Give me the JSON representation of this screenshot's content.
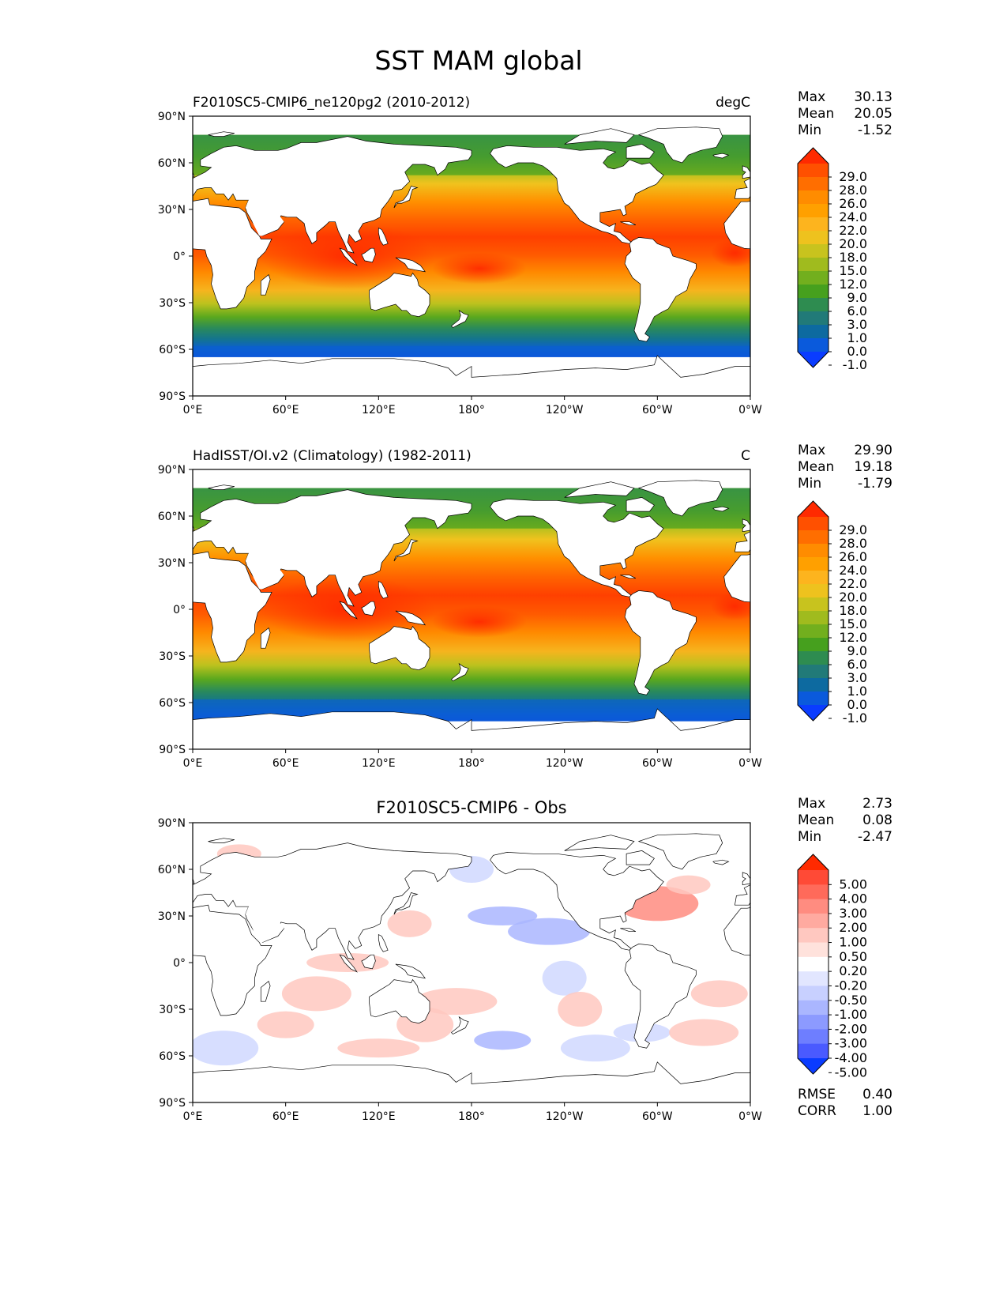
{
  "figure_title": "SST MAM global",
  "axes": {
    "lat_ticks": [
      "90°N",
      "60°N",
      "30°N",
      "0°",
      "30°S",
      "60°S",
      "90°S"
    ],
    "lon_ticks": [
      "0°E",
      "60°E",
      "120°E",
      "180°",
      "120°W",
      "60°W",
      "0°W"
    ]
  },
  "colorbars": {
    "sst": {
      "labels": [
        "29.0",
        "28.0",
        "26.0",
        "24.0",
        "22.0",
        "20.0",
        "18.0",
        "15.0",
        "12.0",
        "9.0",
        "6.0",
        "3.0",
        "1.0",
        "0.0",
        "-1.0"
      ],
      "colors": [
        "#ff2a00",
        "#ff5000",
        "#ff6e00",
        "#ff8c00",
        "#ffa000",
        "#fdb41e",
        "#eec21e",
        "#c8c31e",
        "#a0bb1e",
        "#72af1e",
        "#46a01e",
        "#2e8c50",
        "#217a78",
        "#0d6aa0",
        "#0a5adc",
        "#0a3cff"
      ]
    },
    "diff": {
      "labels": [
        "5.00",
        "4.00",
        "3.00",
        "2.00",
        "1.00",
        "0.50",
        "0.20",
        "-0.20",
        "-0.50",
        "-1.00",
        "-2.00",
        "-3.00",
        "-4.00",
        "-5.00"
      ],
      "colors": [
        "#ff2a00",
        "#ff4a36",
        "#ff6a5a",
        "#ff8c80",
        "#ffaaa0",
        "#ffc8c0",
        "#ffe2dc",
        "#ffffff",
        "#e2e6ff",
        "#c8d0ff",
        "#aab6ff",
        "#8c9aff",
        "#6e7eff",
        "#4a5aff",
        "#0a3cff"
      ]
    }
  },
  "panels": [
    {
      "name": "model",
      "left_title": "F2010SC5-CMIP6_ne120pg2 (2010-2012)",
      "center_title": "",
      "right_title": "degC",
      "colorbar": "sst",
      "stats": [
        {
          "label": "Max",
          "value": "30.13"
        },
        {
          "label": "Mean",
          "value": "20.05"
        },
        {
          "label": "Min",
          "value": "-1.52"
        }
      ]
    },
    {
      "name": "obs",
      "left_title": "HadISST/OI.v2 (Climatology) (1982-2011)",
      "center_title": "",
      "right_title": "C",
      "colorbar": "sst",
      "stats": [
        {
          "label": "Max",
          "value": "29.90"
        },
        {
          "label": "Mean",
          "value": "19.18"
        },
        {
          "label": "Min",
          "value": "-1.79"
        }
      ]
    },
    {
      "name": "diff",
      "left_title": "",
      "center_title": "F2010SC5-CMIP6 - Obs",
      "right_title": "",
      "colorbar": "diff",
      "stats": [
        {
          "label": "Max",
          "value": "2.73"
        },
        {
          "label": "Mean",
          "value": "0.08"
        },
        {
          "label": "Min",
          "value": "-2.47"
        }
      ],
      "extra_stats": [
        {
          "label": "RMSE",
          "value": "0.40"
        },
        {
          "label": "CORR",
          "value": "1.00"
        }
      ]
    }
  ],
  "chart_data": [
    {
      "type": "heatmap",
      "title": "F2010SC5-CMIP6_ne120pg2 (2010-2012)",
      "units": "degC",
      "x_range": [
        0,
        360
      ],
      "y_range": [
        -90,
        90
      ],
      "xticks": [
        0,
        60,
        120,
        180,
        240,
        300,
        360
      ],
      "yticks": [
        90,
        60,
        30,
        0,
        -30,
        -60,
        -90
      ],
      "contour_levels": [
        -1.0,
        0.0,
        1.0,
        3.0,
        6.0,
        9.0,
        12.0,
        15.0,
        18.0,
        20.0,
        22.0,
        24.0,
        26.0,
        28.0,
        29.0
      ],
      "stats": {
        "max": 30.13,
        "mean": 20.05,
        "min": -1.52
      },
      "zonal_profile": {
        "lat": [
          75,
          60,
          45,
          30,
          15,
          0,
          -15,
          -30,
          -45,
          -55,
          -65
        ],
        "sst": [
          4,
          9,
          15,
          21,
          26,
          28,
          26,
          21,
          13,
          5,
          -1
        ]
      }
    },
    {
      "type": "heatmap",
      "title": "HadISST/OI.v2 (Climatology) (1982-2011)",
      "units": "C",
      "x_range": [
        0,
        360
      ],
      "y_range": [
        -90,
        90
      ],
      "xticks": [
        0,
        60,
        120,
        180,
        240,
        300,
        360
      ],
      "yticks": [
        90,
        60,
        30,
        0,
        -30,
        -60,
        -90
      ],
      "contour_levels": [
        -1.0,
        0.0,
        1.0,
        3.0,
        6.0,
        9.0,
        12.0,
        15.0,
        18.0,
        20.0,
        22.0,
        24.0,
        26.0,
        28.0,
        29.0
      ],
      "stats": {
        "max": 29.9,
        "mean": 19.18,
        "min": -1.79
      },
      "zonal_profile": {
        "lat": [
          75,
          60,
          45,
          30,
          15,
          0,
          -15,
          -30,
          -45,
          -55,
          -70
        ],
        "sst": [
          3,
          8,
          14,
          20,
          26,
          28,
          26,
          20,
          12,
          4,
          -1.5
        ]
      }
    },
    {
      "type": "heatmap",
      "title": "F2010SC5-CMIP6 - Obs",
      "units": "",
      "x_range": [
        0,
        360
      ],
      "y_range": [
        -90,
        90
      ],
      "xticks": [
        0,
        60,
        120,
        180,
        240,
        300,
        360
      ],
      "yticks": [
        90,
        60,
        30,
        0,
        -30,
        -60,
        -90
      ],
      "contour_levels": [
        -5.0,
        -4.0,
        -3.0,
        -2.0,
        -1.0,
        -0.5,
        -0.2,
        0.2,
        0.5,
        1.0,
        2.0,
        3.0,
        4.0,
        5.0
      ],
      "stats": {
        "max": 2.73,
        "mean": 0.08,
        "min": -2.47,
        "rmse": 0.4,
        "corr": 1.0
      }
    }
  ]
}
